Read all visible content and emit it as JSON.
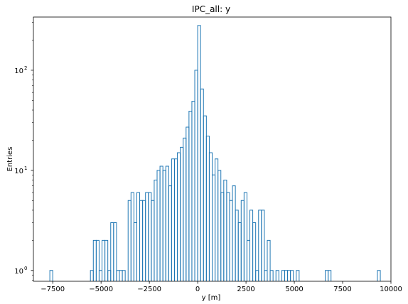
{
  "chart_data": {
    "type": "histogram",
    "title": "IPC_all: y",
    "xlabel": "y [m]",
    "ylabel": "Entries",
    "yscale": "log",
    "xlim": [
      -8500,
      10000
    ],
    "ylim": [
      0.78,
      340
    ],
    "x_ticks": [
      -7500,
      -5000,
      -2500,
      0,
      2500,
      5000,
      7500,
      10000
    ],
    "x_tick_labels": [
      "−7500",
      "−5000",
      "−2500",
      "0",
      "2500",
      "5000",
      "7500",
      "10000"
    ],
    "y_ticks": [
      1,
      10,
      100
    ],
    "y_tick_labels_base": "10",
    "y_tick_labels_exp": [
      "0",
      "1",
      "2"
    ],
    "series_color": "#1f77b4",
    "bin_width": 150,
    "bins": [
      [
        -7650,
        1
      ],
      [
        -5550,
        1
      ],
      [
        -5400,
        2
      ],
      [
        -5250,
        2
      ],
      [
        -5100,
        1
      ],
      [
        -4950,
        2
      ],
      [
        -4800,
        2
      ],
      [
        -4650,
        1
      ],
      [
        -4500,
        3
      ],
      [
        -4350,
        3
      ],
      [
        -4200,
        1
      ],
      [
        -4050,
        1
      ],
      [
        -3900,
        1
      ],
      [
        -3600,
        5
      ],
      [
        -3450,
        6
      ],
      [
        -3300,
        3
      ],
      [
        -3150,
        6
      ],
      [
        -3000,
        5
      ],
      [
        -2850,
        5
      ],
      [
        -2700,
        6
      ],
      [
        -2550,
        6
      ],
      [
        -2400,
        5
      ],
      [
        -2250,
        8
      ],
      [
        -2100,
        10
      ],
      [
        -1950,
        11
      ],
      [
        -1800,
        10
      ],
      [
        -1650,
        11
      ],
      [
        -1500,
        7
      ],
      [
        -1350,
        13
      ],
      [
        -1200,
        13
      ],
      [
        -1050,
        15
      ],
      [
        -900,
        17
      ],
      [
        -750,
        21
      ],
      [
        -600,
        27
      ],
      [
        -450,
        39
      ],
      [
        -300,
        49
      ],
      [
        -150,
        100
      ],
      [
        0,
        280
      ],
      [
        150,
        65
      ],
      [
        300,
        35
      ],
      [
        450,
        22
      ],
      [
        600,
        15
      ],
      [
        750,
        9
      ],
      [
        900,
        13
      ],
      [
        1050,
        10
      ],
      [
        1200,
        6
      ],
      [
        1350,
        8
      ],
      [
        1500,
        6
      ],
      [
        1650,
        5
      ],
      [
        1800,
        7
      ],
      [
        1950,
        4
      ],
      [
        2100,
        3
      ],
      [
        2250,
        5
      ],
      [
        2400,
        6
      ],
      [
        2550,
        2
      ],
      [
        2700,
        4
      ],
      [
        2850,
        3
      ],
      [
        3000,
        1
      ],
      [
        3150,
        4
      ],
      [
        3300,
        4
      ],
      [
        3450,
        1
      ],
      [
        3600,
        2
      ],
      [
        3750,
        1
      ],
      [
        4050,
        1
      ],
      [
        4350,
        1
      ],
      [
        4500,
        1
      ],
      [
        4650,
        1
      ],
      [
        4800,
        1
      ],
      [
        5100,
        1
      ],
      [
        6600,
        1
      ],
      [
        6750,
        1
      ],
      [
        9300,
        1
      ]
    ]
  }
}
